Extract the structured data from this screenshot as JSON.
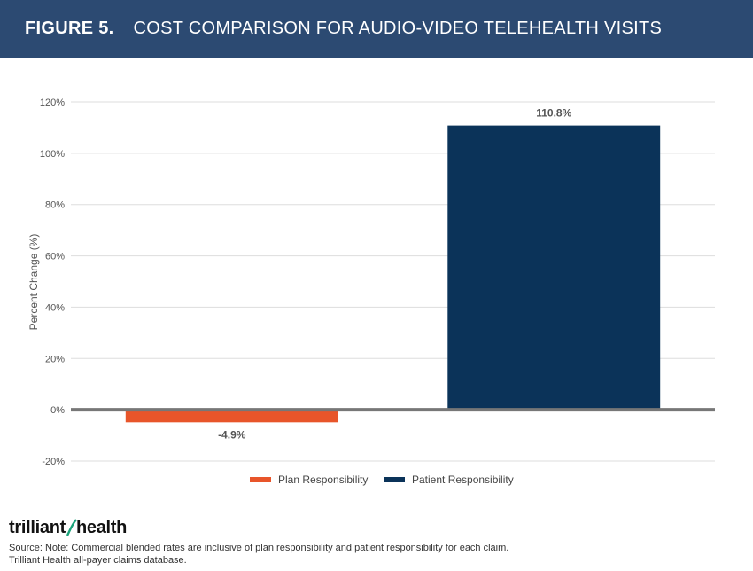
{
  "header": {
    "figure_label": "FIGURE 5.",
    "title": "COST COMPARISON FOR AUDIO-VIDEO TELEHEALTH VISITS"
  },
  "colors": {
    "header_bg": "#2c4a72",
    "plan": "#e8552a",
    "patient": "#0b3359",
    "zero_line": "#777777",
    "grid": "#dddddd"
  },
  "chart_data": {
    "type": "bar",
    "ylabel": "Percent Change (%)",
    "ylim": [
      -20,
      120
    ],
    "yticks": [
      -20,
      0,
      20,
      40,
      60,
      80,
      100,
      120
    ],
    "ytick_labels": [
      "-20%",
      "0%",
      "20%",
      "40%",
      "60%",
      "80%",
      "100%",
      "120%"
    ],
    "grid": true,
    "legend_position": "bottom-center",
    "series": [
      {
        "name": "Plan Responsibility",
        "value": -4.9,
        "label": "-4.9%",
        "color": "#e8552a"
      },
      {
        "name": "Patient Responsibility",
        "value": 110.8,
        "label": "110.8%",
        "color": "#0b3359"
      }
    ]
  },
  "logo": {
    "text_left": "trilliant",
    "text_right": "health"
  },
  "footer": {
    "source_line1": "Source: Note: Commercial blended rates are inclusive of plan responsibility and patient responsibility for each claim.",
    "source_line2": "Trilliant Health all-payer claims database."
  }
}
